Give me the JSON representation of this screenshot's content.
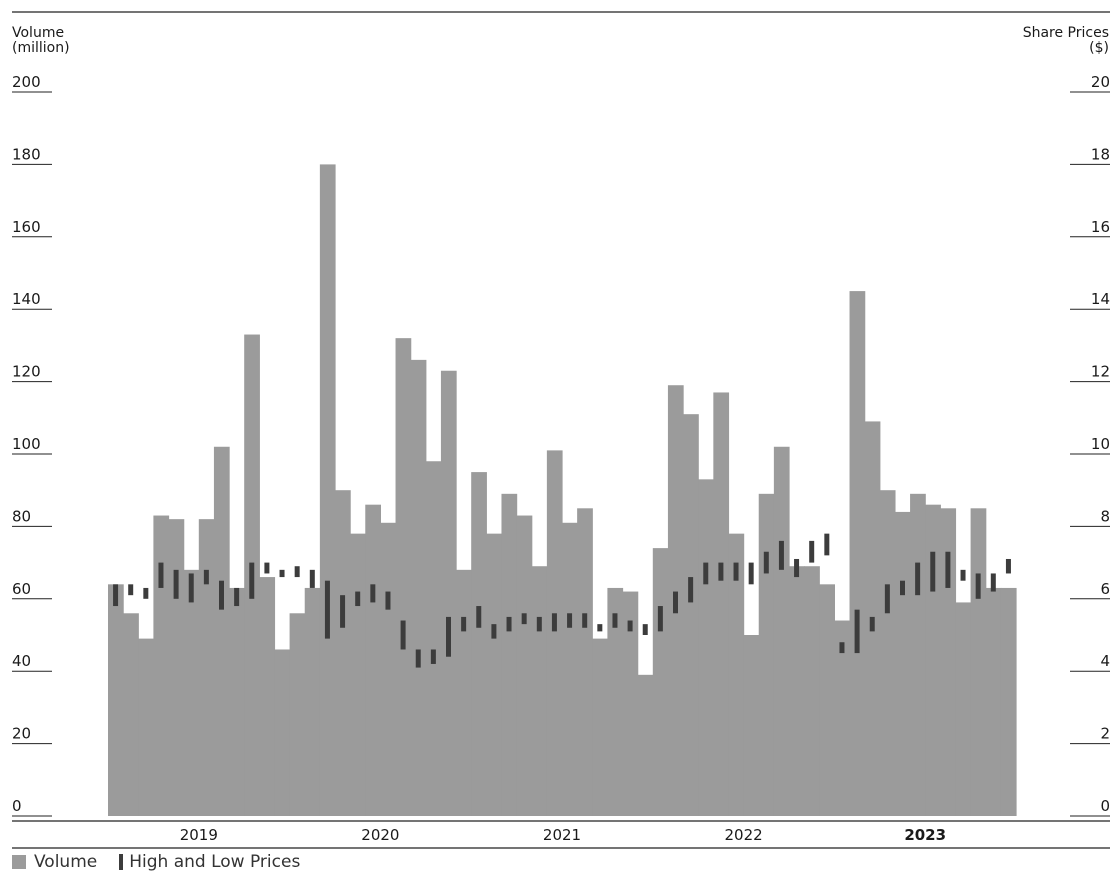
{
  "chart_data": {
    "type": "bar",
    "left_axis_title": [
      "Volume",
      "(million)"
    ],
    "right_axis_title": [
      "Share Prices",
      "($)"
    ],
    "volume_axis": {
      "min": 0,
      "max": 200,
      "ticks": [
        0,
        20,
        40,
        60,
        80,
        100,
        120,
        140,
        160,
        180,
        200
      ]
    },
    "price_axis": {
      "min": 0,
      "max": 20,
      "ticks": [
        0,
        2,
        4,
        6,
        8,
        10,
        12,
        14,
        16,
        18,
        20
      ]
    },
    "years": [
      "2019",
      "2020",
      "2021",
      "2022",
      "2023"
    ],
    "highlighted_year": "2023",
    "series": [
      {
        "name": "Volume",
        "color": "#9b9b9b",
        "values": [
          64,
          56,
          49,
          83,
          82,
          68,
          82,
          102,
          63,
          133,
          66,
          46,
          56,
          63,
          180,
          90,
          78,
          86,
          81,
          132,
          126,
          98,
          123,
          68,
          95,
          78,
          89,
          83,
          69,
          101,
          81,
          85,
          49,
          63,
          62,
          39,
          74,
          119,
          111,
          93,
          117,
          78,
          50,
          89,
          102,
          69,
          69,
          64,
          54,
          145,
          109,
          90,
          84,
          89,
          86,
          85,
          59,
          85,
          63,
          63
        ]
      },
      {
        "name": "High and Low Prices",
        "color": "#3c3c3c",
        "high": [
          6.4,
          6.4,
          6.3,
          7.0,
          6.8,
          6.7,
          6.8,
          6.5,
          6.3,
          7.0,
          7.0,
          6.8,
          6.9,
          6.8,
          6.5,
          6.1,
          6.2,
          6.4,
          6.2,
          5.4,
          4.6,
          4.6,
          5.5,
          5.5,
          5.8,
          5.3,
          5.5,
          5.6,
          5.5,
          5.6,
          5.6,
          5.6,
          5.3,
          5.6,
          5.4,
          5.3,
          5.8,
          6.2,
          6.6,
          7.0,
          7.0,
          7.0,
          7.0,
          7.3,
          7.6,
          7.1,
          7.6,
          7.8,
          4.8,
          5.7,
          5.5,
          6.4,
          6.5,
          7.0,
          7.3,
          7.3,
          6.8,
          6.7,
          6.7,
          7.1
        ]
      },
      {
        "name": "Low",
        "low": [
          5.8,
          6.1,
          6.0,
          6.3,
          6.0,
          5.9,
          6.4,
          5.7,
          5.8,
          6.0,
          6.7,
          6.6,
          6.6,
          6.3,
          4.9,
          5.2,
          5.8,
          5.9,
          5.7,
          4.6,
          4.1,
          4.2,
          4.4,
          5.1,
          5.2,
          4.9,
          5.1,
          5.3,
          5.1,
          5.1,
          5.2,
          5.2,
          5.1,
          5.2,
          5.1,
          5.0,
          5.1,
          5.6,
          5.9,
          6.4,
          6.5,
          6.5,
          6.4,
          6.7,
          6.8,
          6.6,
          7.0,
          7.2,
          4.5,
          4.5,
          5.1,
          5.6,
          6.1,
          6.1,
          6.2,
          6.3,
          6.5,
          6.0,
          6.2,
          6.7
        ]
      }
    ],
    "legend": [
      {
        "label": "Volume"
      },
      {
        "label": "High and Low Prices"
      }
    ],
    "legend_position": "bottom-left",
    "grid": false
  }
}
